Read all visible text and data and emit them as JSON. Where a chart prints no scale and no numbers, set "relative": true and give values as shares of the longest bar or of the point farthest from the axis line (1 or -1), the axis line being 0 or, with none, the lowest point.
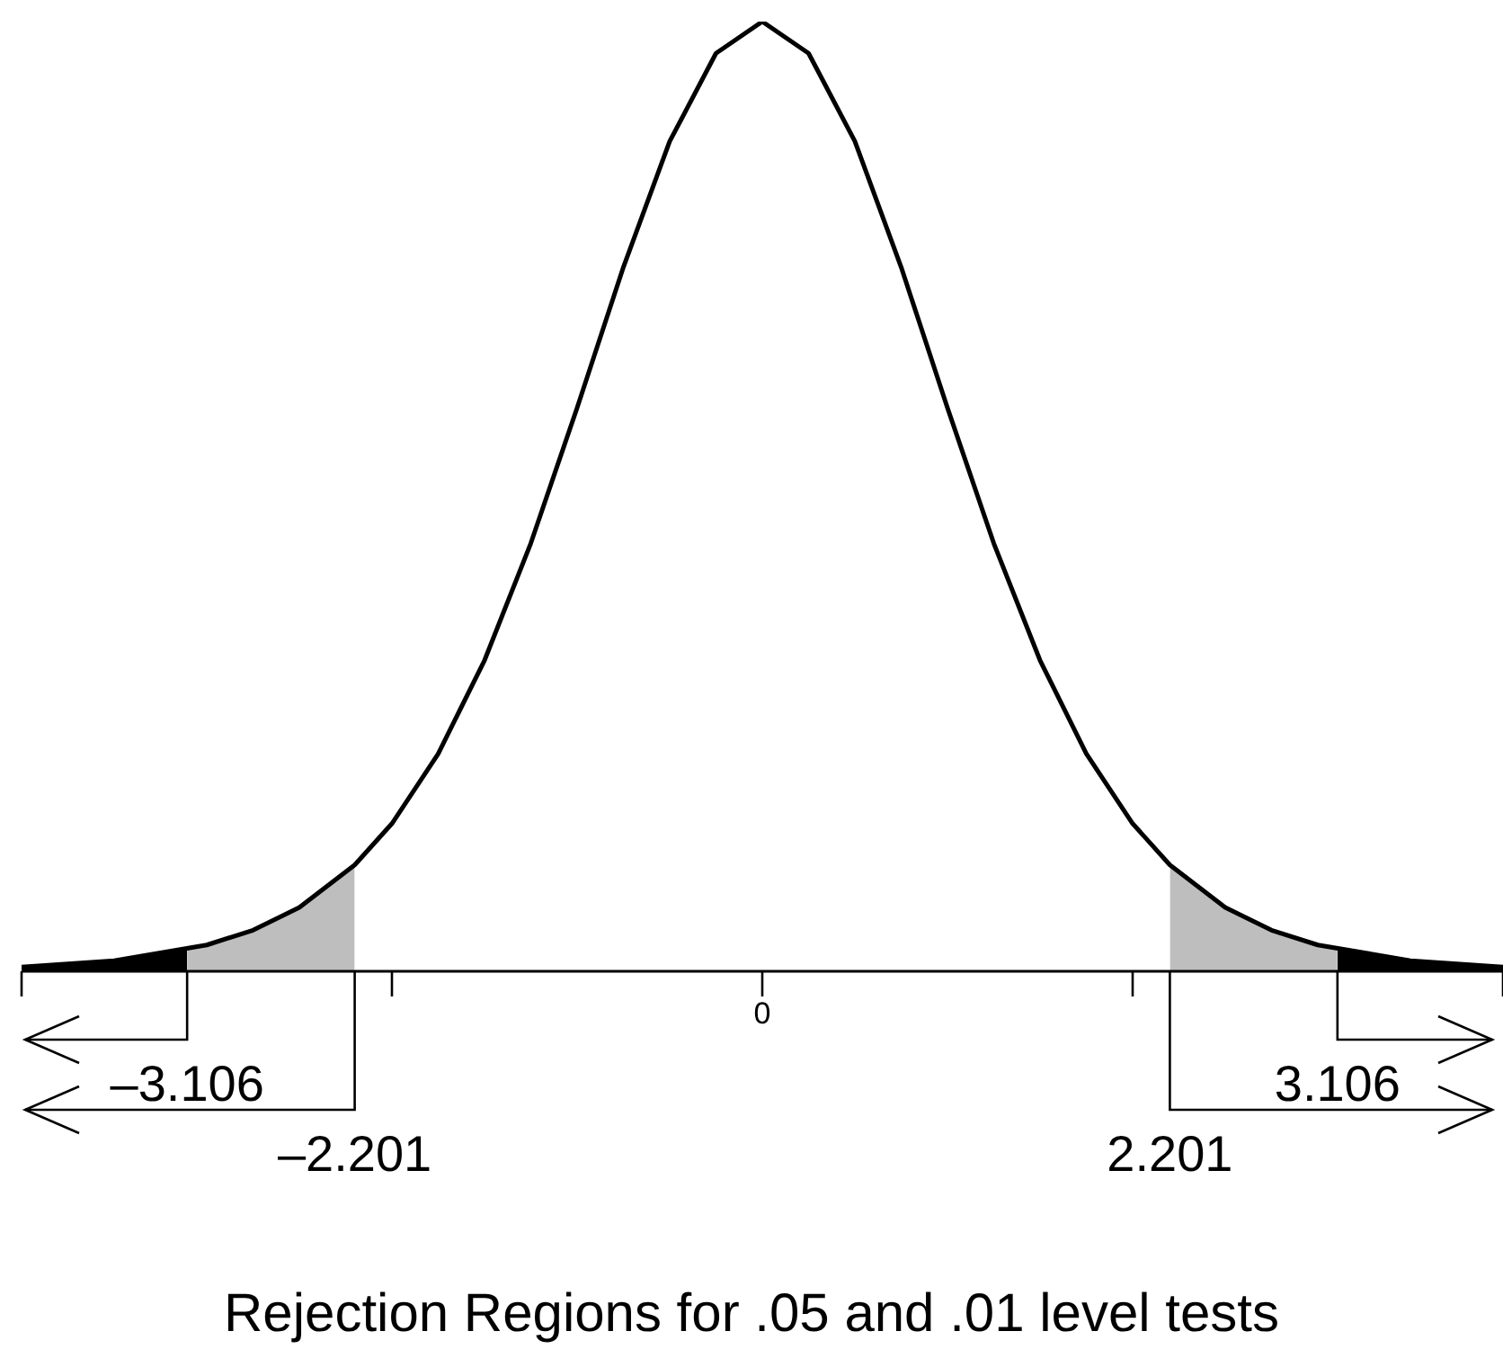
{
  "chart_data": {
    "type": "line",
    "relative": true,
    "xlabel": "Rejection Regions for .05 and .01 level tests",
    "xlim": [
      -4,
      4
    ],
    "xticks": [
      {
        "value": -4,
        "label": null
      },
      {
        "value": -3.106,
        "label": "–3.106"
      },
      {
        "value": -2,
        "label": null
      },
      {
        "value": 0,
        "label": null
      },
      {
        "value": 2,
        "label": null
      },
      {
        "value": 3.106,
        "label": "3.106"
      },
      {
        "value": 4,
        "label": null
      }
    ],
    "annotations": [
      "0"
    ],
    "ref_lines": [
      {
        "axis": "x",
        "value": -2.201,
        "label": "–2.201"
      },
      {
        "axis": "x",
        "value": 2.201,
        "label": "2.201"
      }
    ],
    "legend": false,
    "series": [
      {
        "type": "area",
        "color": "#000000",
        "x": [
          -4,
          -3.5,
          -3.106
        ],
        "values": [
          0.0046,
          0.0112,
          0.0229
        ]
      },
      {
        "type": "area",
        "color": "#bebebe",
        "x": [
          -3.106,
          -3,
          -2.75,
          -2.5,
          -2.201
        ],
        "values": [
          0.0229,
          0.0277,
          0.0433,
          0.0672,
          0.112
        ]
      },
      {
        "type": "area",
        "color": "#bebebe",
        "x": [
          2.201,
          2.5,
          2.75,
          3,
          3.106
        ],
        "values": [
          0.112,
          0.0672,
          0.0433,
          0.0277,
          0.0229
        ]
      },
      {
        "type": "area",
        "color": "#000000",
        "x": [
          3.106,
          3.5,
          4
        ],
        "values": [
          0.0229,
          0.0112,
          0.0046
        ]
      },
      {
        "color": "#000000",
        "x": [
          -4,
          -3.5,
          -3,
          -2.75,
          -2.5,
          -2.201,
          -2,
          -1.75,
          -1.5,
          -1.25,
          -1,
          -0.75,
          -0.5,
          -0.25,
          0,
          0.25,
          0.5,
          0.75,
          1,
          1.25,
          1.5,
          1.75,
          2,
          2.201,
          2.5,
          2.75,
          3,
          3.5,
          4
        ],
        "values": [
          0.0046,
          0.0112,
          0.0277,
          0.0433,
          0.0672,
          0.112,
          0.1555,
          0.2291,
          0.3274,
          0.4507,
          0.5933,
          0.7414,
          0.8739,
          0.9666,
          1,
          0.9666,
          0.8739,
          0.7414,
          0.5933,
          0.4507,
          0.3274,
          0.2291,
          0.1555,
          0.112,
          0.0672,
          0.0433,
          0.0277,
          0.0112,
          0.0046
        ]
      }
    ]
  }
}
